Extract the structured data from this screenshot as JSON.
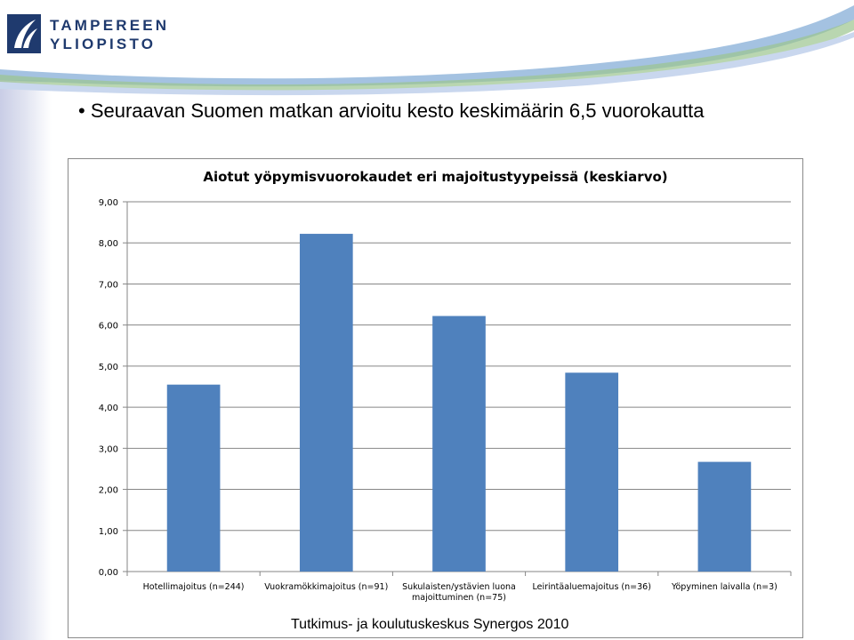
{
  "logo": {
    "line1": "TAMPEREEN",
    "line2": "YLIOPISTO"
  },
  "slide": {
    "bullet_text": "Seuraavan Suomen matkan arvioitu kesto keskimäärin 6,5 vuorokautta"
  },
  "footer": {
    "source": "Tutkimus- ja koulutuskeskus Synergos 2010"
  },
  "colors": {
    "bar": "#4f81bd",
    "grid": "#868686",
    "brand": "#1f3a6e"
  },
  "chart_data": {
    "type": "bar",
    "title": "Aiotut yöpymisvuorokaudet eri majoitustyypeissä (keskiarvo)",
    "categories": [
      [
        "Hotellimajoitus (n=244)"
      ],
      [
        "Vuokramökkimajoitus (n=91)"
      ],
      [
        "Sukulaisten/ystävien luona",
        "majoittuminen (n=75)"
      ],
      [
        "Leirintäaluemajoitus (n=36)"
      ],
      [
        "Yöpyminen laivalla (n=3)"
      ]
    ],
    "values": [
      4.55,
      8.22,
      6.22,
      4.84,
      2.67
    ],
    "ylim": [
      0,
      9
    ],
    "yticks": [
      "0,00",
      "1,00",
      "2,00",
      "3,00",
      "4,00",
      "5,00",
      "6,00",
      "7,00",
      "8,00",
      "9,00"
    ],
    "grid": true,
    "legend": "none"
  }
}
